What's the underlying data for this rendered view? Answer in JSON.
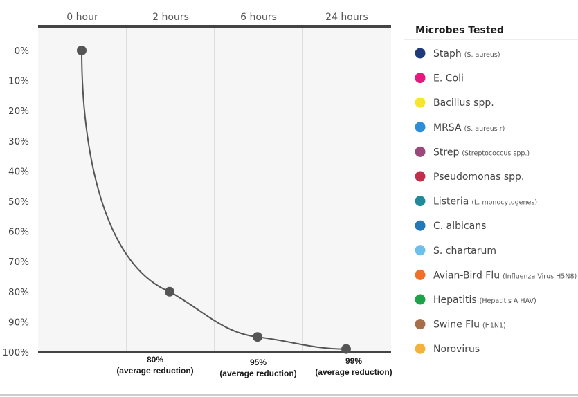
{
  "chart_data": {
    "type": "line",
    "x_categories": [
      "0 hour",
      "2 hours",
      "6 hours",
      "24 hours"
    ],
    "y_ticks": [
      "0%",
      "10%",
      "20%",
      "30%",
      "40%",
      "50%",
      "60%",
      "70%",
      "80%",
      "90%",
      "100%"
    ],
    "ylim": [
      0,
      100
    ],
    "y_inverted": true,
    "series": [
      {
        "x": [
          "0 hour",
          "2 hours",
          "6 hours",
          "24 hours"
        ],
        "values": [
          0,
          80,
          95,
          99
        ],
        "color": "#555555"
      }
    ],
    "annotations": [
      {
        "x": "2 hours",
        "lines": [
          "80%",
          "(average reduction)"
        ]
      },
      {
        "x": "6 hours",
        "lines": [
          "95%",
          "(average reduction)"
        ]
      },
      {
        "x": "24 hours",
        "lines": [
          "99%",
          "(average reduction)"
        ]
      }
    ],
    "grid": true,
    "legend_position": "right"
  },
  "legend": {
    "title": "Microbes Tested",
    "items": [
      {
        "name": "Staph",
        "sci": "(S. aureus)",
        "color": "#1f3a7a"
      },
      {
        "name": "E. Coli",
        "sci": "",
        "color": "#e6197e"
      },
      {
        "name": "Bacillus spp.",
        "sci": "",
        "color": "#f5e62a"
      },
      {
        "name": "MRSA",
        "sci": "(S. aureus r)",
        "color": "#2a8fd8"
      },
      {
        "name": "Strep",
        "sci": "(Streptococcus spp.)",
        "color": "#9a4a7a"
      },
      {
        "name": "Pseudomonas spp.",
        "sci": "",
        "color": "#c0304a"
      },
      {
        "name": "Listeria",
        "sci": "(L. monocytogenes)",
        "color": "#1f8a9a"
      },
      {
        "name": "C. albicans",
        "sci": "",
        "color": "#2478b8"
      },
      {
        "name": "S. chartarum",
        "sci": "",
        "color": "#6cc0ea"
      },
      {
        "name": "Avian-Bird Flu",
        "sci": "(Influenza Virus H5N8)",
        "color": "#ee7029"
      },
      {
        "name": "Hepatitis",
        "sci": "(Hepatitis A HAV)",
        "color": "#1ea34a"
      },
      {
        "name": "Swine Flu",
        "sci": "(H1N1)",
        "color": "#a8704a"
      },
      {
        "name": "Norovirus",
        "sci": "",
        "color": "#f2b23c"
      }
    ]
  }
}
